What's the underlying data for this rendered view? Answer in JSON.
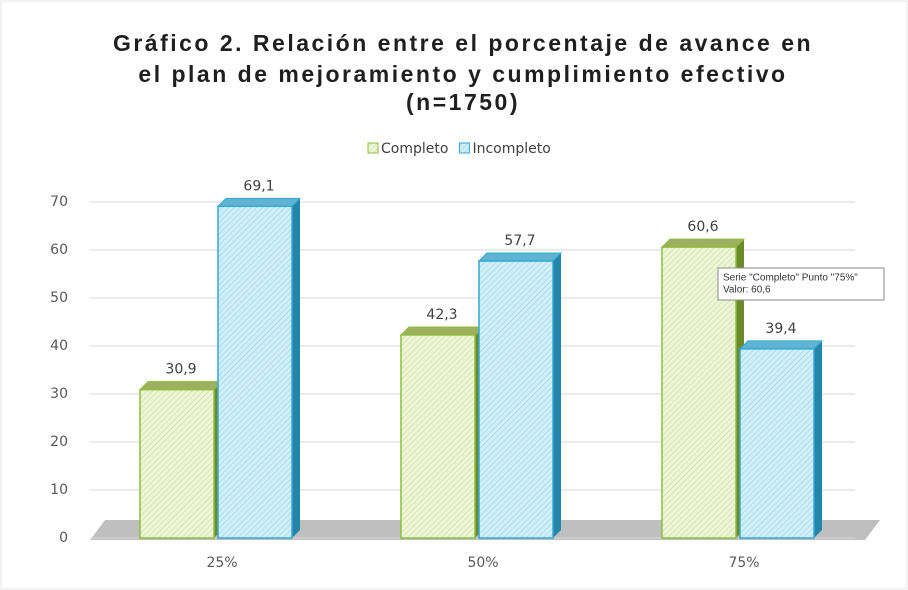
{
  "chart_data": {
    "type": "bar",
    "title": [
      "Gráfico 2. Relación entre el porcentaje de avance en",
      "el plan de mejoramiento y cumplimiento efectivo",
      "(n=1750)"
    ],
    "categories": [
      "25%",
      "50%",
      "75%"
    ],
    "series": [
      {
        "name": "Completo",
        "color": "#8fbe3c",
        "fill": "#eef5d8",
        "values": [
          30.9,
          42.3,
          60.6
        ],
        "value_labels": [
          "30,9",
          "42,3",
          "60,6"
        ]
      },
      {
        "name": "Incompleto",
        "color": "#35a9d3",
        "fill": "#d2eff9",
        "values": [
          69.1,
          57.7,
          39.4
        ],
        "value_labels": [
          "69,1",
          "57,7",
          "39,4"
        ]
      }
    ],
    "ylim": [
      0,
      70
    ],
    "yticks": [
      0,
      10,
      20,
      30,
      40,
      50,
      60,
      70
    ],
    "grid": true,
    "legend": "top",
    "tooltip": [
      "Serie \"Completo\" Punto \"75%\"",
      "Valor: 60,6"
    ]
  }
}
